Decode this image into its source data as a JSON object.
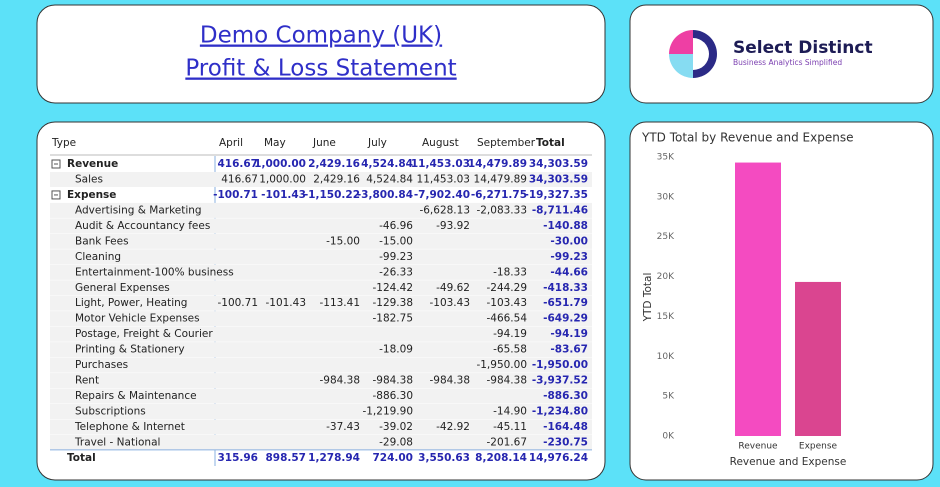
{
  "header": {
    "line1": "Demo Company (UK)",
    "line2": "Profit & Loss Statement"
  },
  "logo": {
    "name": "Select Distinct",
    "tagline": "Business Analytics Simplified"
  },
  "table": {
    "columns": [
      "Type",
      "April",
      "May",
      "June",
      "July",
      "August",
      "September",
      "Total"
    ],
    "sections": [
      {
        "name": "Revenue",
        "cells": [
          "416.67",
          "1,000.00",
          "2,429.16",
          "4,524.84",
          "11,453.03",
          "14,479.89",
          "34,303.59"
        ],
        "items": [
          {
            "name": "Sales",
            "cells": [
              "416.67",
              "1,000.00",
              "2,429.16",
              "4,524.84",
              "11,453.03",
              "14,479.89",
              "34,303.59"
            ]
          }
        ]
      },
      {
        "name": "Expense",
        "cells": [
          "-100.71",
          "-101.43",
          "-1,150.22",
          "-3,800.84",
          "-7,902.40",
          "-6,271.75",
          "-19,327.35"
        ],
        "items": [
          {
            "name": "Advertising & Marketing",
            "cells": [
              null,
              null,
              null,
              null,
              "-6,628.13",
              "-2,083.33",
              "-8,711.46"
            ]
          },
          {
            "name": "Audit & Accountancy fees",
            "cells": [
              null,
              null,
              null,
              "-46.96",
              "-93.92",
              null,
              "-140.88"
            ]
          },
          {
            "name": "Bank Fees",
            "cells": [
              null,
              null,
              "-15.00",
              "-15.00",
              null,
              null,
              "-30.00"
            ]
          },
          {
            "name": "Cleaning",
            "cells": [
              null,
              null,
              null,
              "-99.23",
              null,
              null,
              "-99.23"
            ]
          },
          {
            "name": "Entertainment-100% business",
            "cells": [
              null,
              null,
              null,
              "-26.33",
              null,
              "-18.33",
              "-44.66"
            ]
          },
          {
            "name": "General Expenses",
            "cells": [
              null,
              null,
              null,
              "-124.42",
              "-49.62",
              "-244.29",
              "-418.33"
            ]
          },
          {
            "name": "Light, Power, Heating",
            "cells": [
              "-100.71",
              "-101.43",
              "-113.41",
              "-129.38",
              "-103.43",
              "-103.43",
              "-651.79"
            ]
          },
          {
            "name": "Motor Vehicle Expenses",
            "cells": [
              null,
              null,
              null,
              "-182.75",
              null,
              "-466.54",
              "-649.29"
            ]
          },
          {
            "name": "Postage, Freight & Courier",
            "cells": [
              null,
              null,
              null,
              null,
              null,
              "-94.19",
              "-94.19"
            ]
          },
          {
            "name": "Printing & Stationery",
            "cells": [
              null,
              null,
              null,
              "-18.09",
              null,
              "-65.58",
              "-83.67"
            ]
          },
          {
            "name": "Purchases",
            "cells": [
              null,
              null,
              null,
              null,
              null,
              "-1,950.00",
              "-1,950.00"
            ]
          },
          {
            "name": "Rent",
            "cells": [
              null,
              null,
              "-984.38",
              "-984.38",
              "-984.38",
              "-984.38",
              "-3,937.52"
            ]
          },
          {
            "name": "Repairs & Maintenance",
            "cells": [
              null,
              null,
              null,
              "-886.30",
              null,
              null,
              "-886.30"
            ]
          },
          {
            "name": "Subscriptions",
            "cells": [
              null,
              null,
              null,
              "-1,219.90",
              null,
              "-14.90",
              "-1,234.80"
            ]
          },
          {
            "name": "Telephone & Internet",
            "cells": [
              null,
              null,
              "-37.43",
              "-39.02",
              "-42.92",
              "-45.11",
              "-164.48"
            ]
          },
          {
            "name": "Travel - National",
            "cells": [
              null,
              null,
              null,
              "-29.08",
              null,
              "-201.67",
              "-230.75"
            ]
          }
        ]
      }
    ],
    "total": {
      "name": "Total",
      "cells": [
        "315.96",
        "898.57",
        "1,278.94",
        "724.00",
        "3,550.63",
        "8,208.14",
        "14,976.24"
      ]
    }
  },
  "chart_data": {
    "type": "bar",
    "title": "YTD Total by Revenue and Expense",
    "categories": [
      "Revenue",
      "Expense"
    ],
    "values": [
      34303.59,
      19327.35
    ],
    "colors": [
      "#f44bc1",
      "#da4590"
    ],
    "xlabel": "Revenue and Expense",
    "ylabel": "YTD Total",
    "ylim": [
      0,
      35000
    ],
    "yticks": [
      {
        "value": 0,
        "label": "0K"
      },
      {
        "value": 5000,
        "label": "5K"
      },
      {
        "value": 10000,
        "label": "10K"
      },
      {
        "value": 15000,
        "label": "15K"
      },
      {
        "value": 20000,
        "label": "20K"
      },
      {
        "value": 25000,
        "label": "25K"
      },
      {
        "value": 30000,
        "label": "30K"
      },
      {
        "value": 35000,
        "label": "35K"
      }
    ],
    "grid": false
  }
}
